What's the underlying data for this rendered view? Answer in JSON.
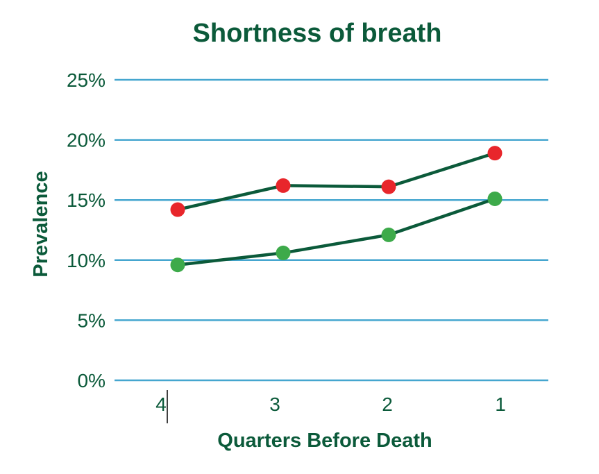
{
  "chart_data": {
    "type": "line",
    "title": "Shortness of breath",
    "xlabel": "Quarters Before Death",
    "ylabel": "Prevalence",
    "categories": [
      "4",
      "3",
      "2",
      "1"
    ],
    "yticks": [
      "0%",
      "5%",
      "10%",
      "15%",
      "20%",
      "25%"
    ],
    "ytick_values": [
      0,
      5,
      10,
      15,
      20,
      25
    ],
    "ylim": [
      0,
      25
    ],
    "grid": true,
    "series": [
      {
        "values": [
          14.2,
          16.2,
          16.1,
          18.9
        ],
        "color": "#e8262b"
      },
      {
        "values": [
          9.6,
          10.6,
          12.1,
          15.1
        ],
        "color": "#3daa4a"
      }
    ]
  }
}
